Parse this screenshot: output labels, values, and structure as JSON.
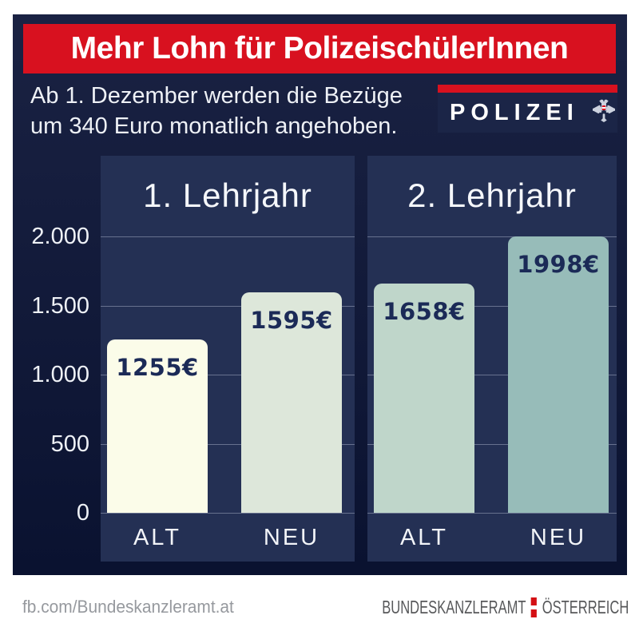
{
  "title_banner": {
    "text": "Mehr Lohn für PolizeischülerInnen"
  },
  "subtitle": {
    "line1": "Ab 1. Dezember werden die Bezüge",
    "line2": "um 340 Euro monatlich angehoben."
  },
  "polizei_logo": {
    "label": "POLIZEI",
    "eagle_icon": "austrian-eagle",
    "stripe_color": "#d8111f",
    "box_color": "#1b2547"
  },
  "chart_data": {
    "type": "bar",
    "groups": [
      {
        "title": "1. Lehrjahr",
        "bars": [
          {
            "label": "ALT",
            "value": 1255,
            "value_label": "1255€",
            "color": "#fbfce9"
          },
          {
            "label": "NEU",
            "value": 1595,
            "value_label": "1595€",
            "color": "#dde7da"
          }
        ]
      },
      {
        "title": "2. Lehrjahr",
        "bars": [
          {
            "label": "ALT",
            "value": 1658,
            "value_label": "1658€",
            "color": "#bfd6ca"
          },
          {
            "label": "NEU",
            "value": 1998,
            "value_label": "1998€",
            "color": "#97bcb9"
          }
        ]
      }
    ],
    "y_axis": {
      "ticks": [
        {
          "label": "2.000",
          "value": 2000
        },
        {
          "label": "1.500",
          "value": 1500
        },
        {
          "label": "1.000",
          "value": 1000
        },
        {
          "label": "500",
          "value": 500
        },
        {
          "label": "0",
          "value": 0
        }
      ],
      "max": 2000
    },
    "ylim": [
      0,
      2000
    ],
    "grid": true,
    "legend_position": "none",
    "value_label_color": "#1b2a57"
  },
  "footer": {
    "left_text": "fb.com/Bundeskanzleramt.at",
    "brand": {
      "part1": "BUNDESKANZLERAMT",
      "part2": "ÖSTERREICH",
      "divider_color": "#d40f14"
    }
  },
  "colors": {
    "banner_red": "#d8111f",
    "card_navy_top": "#1a2243",
    "card_navy_bottom": "#0a1230",
    "panel_navy": "#243054",
    "axis_text": "#eef1f6",
    "value_text": "#1b2a57"
  }
}
